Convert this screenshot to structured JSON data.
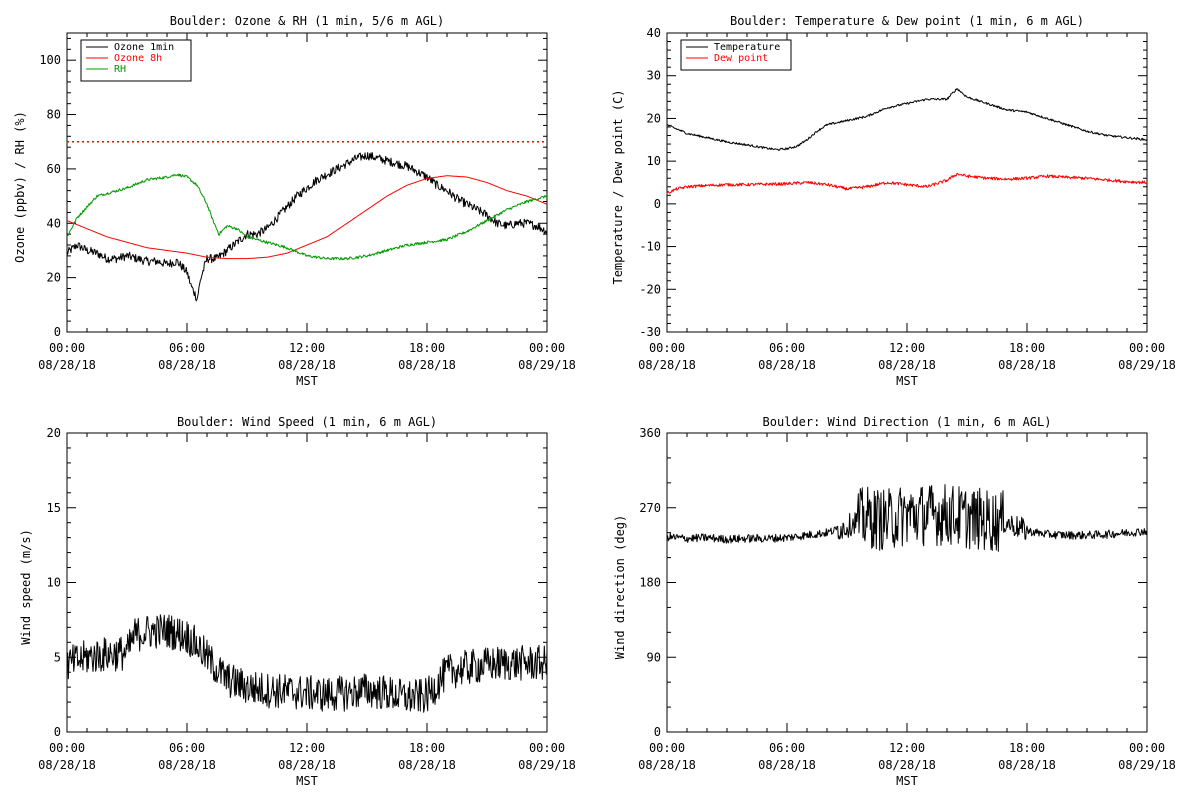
{
  "chart_data": [
    {
      "type": "line",
      "title": "Boulder: Ozone & RH (1 min, 5/6 m AGL)",
      "xlabel": "MST",
      "ylabel": "Ozone (ppbv) / RH (%)",
      "xlim": [
        "2018-08-28T00:00",
        "2018-08-29T00:00"
      ],
      "ylim": [
        0,
        110
      ],
      "yticks": [
        0,
        20,
        40,
        60,
        80,
        100
      ],
      "xticks": [
        {
          "time": "00:00",
          "date": "08/28/18"
        },
        {
          "time": "06:00",
          "date": "08/28/18"
        },
        {
          "time": "12:00",
          "date": "08/28/18"
        },
        {
          "time": "18:00",
          "date": "08/28/18"
        },
        {
          "time": "00:00",
          "date": "08/29/18"
        }
      ],
      "legend": "top-left",
      "reference_lines": [
        {
          "y": 70,
          "color": "#ff0000",
          "style": "dotted"
        }
      ],
      "series": [
        {
          "name": "Ozone 1min",
          "color": "#000000",
          "noise": 1.6,
          "x": [
            0,
            0.5,
            1,
            1.5,
            2,
            2.5,
            3,
            3.5,
            4,
            4.5,
            5,
            5.5,
            6,
            6.2,
            6.4,
            6.5,
            6.7,
            7,
            7.5,
            8,
            8.5,
            9,
            9.5,
            10,
            10.5,
            11,
            11.5,
            12,
            12.5,
            13,
            13.5,
            14,
            14.5,
            15,
            15.5,
            16,
            16.5,
            17,
            17.5,
            18,
            18.5,
            19,
            19.5,
            20,
            20.5,
            21,
            21.5,
            22,
            22.5,
            23,
            23.5,
            24
          ],
          "y": [
            29,
            32,
            30,
            29,
            27,
            27,
            28,
            27,
            26,
            26,
            25,
            26,
            22,
            17,
            14,
            12,
            20,
            27,
            27,
            30,
            33,
            36,
            36,
            38,
            42,
            46,
            50,
            53,
            56,
            58,
            60,
            62,
            64,
            65,
            64,
            63,
            62,
            61,
            59,
            57,
            54,
            52,
            49,
            47,
            45,
            43,
            40,
            39,
            40,
            40,
            39,
            37
          ]
        },
        {
          "name": "Ozone 8h",
          "color": "#ff0000",
          "noise": 0,
          "x": [
            0,
            1,
            2,
            3,
            4,
            5,
            6,
            7,
            8,
            9,
            10,
            11,
            12,
            13,
            14,
            15,
            16,
            17,
            18,
            19,
            20,
            21,
            22,
            23,
            24
          ],
          "y": [
            41,
            38,
            35,
            33,
            31,
            30,
            29,
            27.5,
            27,
            27,
            27.5,
            29,
            32,
            35,
            40,
            45,
            50,
            54,
            56.5,
            57.5,
            57,
            55,
            52,
            50,
            47
          ]
        },
        {
          "name": "RH",
          "color": "#009900",
          "noise": 0.5,
          "x": [
            0,
            0.5,
            1,
            1.5,
            2,
            3,
            4,
            5,
            5.5,
            6,
            6.5,
            7,
            7.3,
            7.6,
            8,
            8.5,
            9,
            10,
            11,
            12,
            13,
            14,
            15,
            16,
            17,
            18,
            19,
            20,
            21,
            22,
            23,
            24
          ],
          "y": [
            35,
            42,
            46,
            50,
            51,
            53,
            56,
            57,
            58,
            57,
            54,
            47,
            41,
            36,
            39,
            38,
            35,
            33,
            31,
            28,
            27,
            27,
            28,
            30,
            32,
            33,
            34,
            37,
            41,
            45,
            48,
            50
          ]
        }
      ]
    },
    {
      "type": "line",
      "title": "Boulder: Temperature & Dew point (1 min, 6 m AGL)",
      "xlabel": "MST",
      "ylabel": "Temperature / Dew point (C)",
      "xlim": [
        "2018-08-28T00:00",
        "2018-08-29T00:00"
      ],
      "ylim": [
        -30,
        40
      ],
      "yticks": [
        -30,
        -20,
        -10,
        0,
        10,
        20,
        30,
        40
      ],
      "xticks": [
        {
          "time": "00:00",
          "date": "08/28/18"
        },
        {
          "time": "06:00",
          "date": "08/28/18"
        },
        {
          "time": "12:00",
          "date": "08/28/18"
        },
        {
          "time": "18:00",
          "date": "08/28/18"
        },
        {
          "time": "00:00",
          "date": "08/29/18"
        }
      ],
      "legend": "top-left",
      "series": [
        {
          "name": "Temperature",
          "color": "#000000",
          "noise": 0.25,
          "x": [
            0,
            1,
            2,
            3,
            4,
            5,
            5.5,
            6,
            6.5,
            7,
            7.5,
            8,
            9,
            10,
            11,
            12,
            13,
            14,
            14.5,
            15,
            16,
            17,
            18,
            19,
            20,
            21,
            22,
            23,
            24
          ],
          "y": [
            18.5,
            16.5,
            15.5,
            14.5,
            13.8,
            13,
            12.7,
            12.9,
            13.5,
            15,
            17,
            18.5,
            19.5,
            20.5,
            22.5,
            23.5,
            24.5,
            24.5,
            27,
            25,
            23.5,
            22,
            21.5,
            20,
            18.5,
            17,
            16,
            15.5,
            15
          ]
        },
        {
          "name": "Dew point",
          "color": "#ff0000",
          "noise": 0.35,
          "x": [
            0,
            0.5,
            1,
            2,
            3,
            4,
            5,
            6,
            7,
            8,
            9,
            10,
            11,
            12,
            13,
            14,
            14.5,
            15,
            16,
            17,
            18,
            19,
            20,
            21,
            22,
            23,
            24
          ],
          "y": [
            2.5,
            3.5,
            4,
            4.3,
            4.5,
            4.5,
            4.6,
            4.7,
            5,
            4.5,
            3.5,
            4,
            5,
            4.5,
            4,
            5.5,
            7,
            6.5,
            6,
            5.8,
            6,
            6.5,
            6.2,
            6,
            5.6,
            5.2,
            5
          ]
        }
      ]
    },
    {
      "type": "line",
      "title": "Boulder: Wind Speed (1 min, 6 m AGL)",
      "xlabel": "MST",
      "ylabel": "Wind speed (m/s)",
      "xlim": [
        "2018-08-28T00:00",
        "2018-08-29T00:00"
      ],
      "ylim": [
        0,
        20
      ],
      "yticks": [
        0,
        5,
        10,
        15,
        20
      ],
      "xticks": [
        {
          "time": "00:00",
          "date": "08/28/18"
        },
        {
          "time": "06:00",
          "date": "08/28/18"
        },
        {
          "time": "12:00",
          "date": "08/28/18"
        },
        {
          "time": "18:00",
          "date": "08/28/18"
        },
        {
          "time": "00:00",
          "date": "08/29/18"
        }
      ],
      "legend": "none",
      "series": [
        {
          "color": "#000000",
          "noise": 1.2,
          "x": [
            0,
            1,
            2,
            3,
            3.4,
            4,
            5,
            6,
            6.5,
            7,
            7.5,
            8,
            9,
            10,
            11,
            12,
            13,
            14,
            15,
            16,
            17,
            18,
            18.5,
            19,
            20,
            21,
            22,
            23,
            24
          ],
          "y": [
            4.5,
            5,
            5.2,
            5.3,
            6.5,
            6.7,
            6.8,
            6.4,
            5.8,
            5,
            4.2,
            3.5,
            3,
            2.8,
            2.7,
            2.6,
            2.5,
            2.6,
            2.8,
            2.6,
            2.3,
            2.4,
            3.2,
            4,
            4.3,
            4.5,
            4.6,
            4.6,
            4.6
          ]
        }
      ]
    },
    {
      "type": "line",
      "title": "Boulder: Wind Direction (1 min, 6 m AGL)",
      "xlabel": "MST",
      "ylabel": "Wind direction (deg)",
      "xlim": [
        "2018-08-28T00:00",
        "2018-08-29T00:00"
      ],
      "ylim": [
        0,
        360
      ],
      "yticks": [
        0,
        90,
        180,
        270,
        360
      ],
      "xticks": [
        {
          "time": "00:00",
          "date": "08/28/18"
        },
        {
          "time": "06:00",
          "date": "08/28/18"
        },
        {
          "time": "12:00",
          "date": "08/28/18"
        },
        {
          "time": "18:00",
          "date": "08/28/18"
        },
        {
          "time": "00:00",
          "date": "08/29/18"
        }
      ],
      "legend": "none",
      "series": [
        {
          "color": "#000000",
          "noise": 5,
          "x": [
            0,
            1,
            2,
            3,
            4,
            5,
            6,
            7,
            8,
            9,
            9.5,
            10,
            11,
            12,
            13,
            14,
            15,
            16,
            17,
            18,
            19,
            20,
            21,
            22,
            23,
            24
          ],
          "y": [
            235,
            233,
            234,
            232,
            233,
            233,
            234,
            237,
            240,
            247,
            255,
            258,
            255,
            262,
            262,
            262,
            258,
            255,
            252,
            242,
            238,
            237,
            237,
            238,
            240,
            242
          ],
          "noise_ranges": [
            {
              "from": 8.5,
              "to": 9.5,
              "amp": 14
            },
            {
              "from": 9.5,
              "to": 16.8,
              "amp": 38
            },
            {
              "from": 16.8,
              "to": 18,
              "amp": 14
            }
          ]
        }
      ]
    }
  ]
}
